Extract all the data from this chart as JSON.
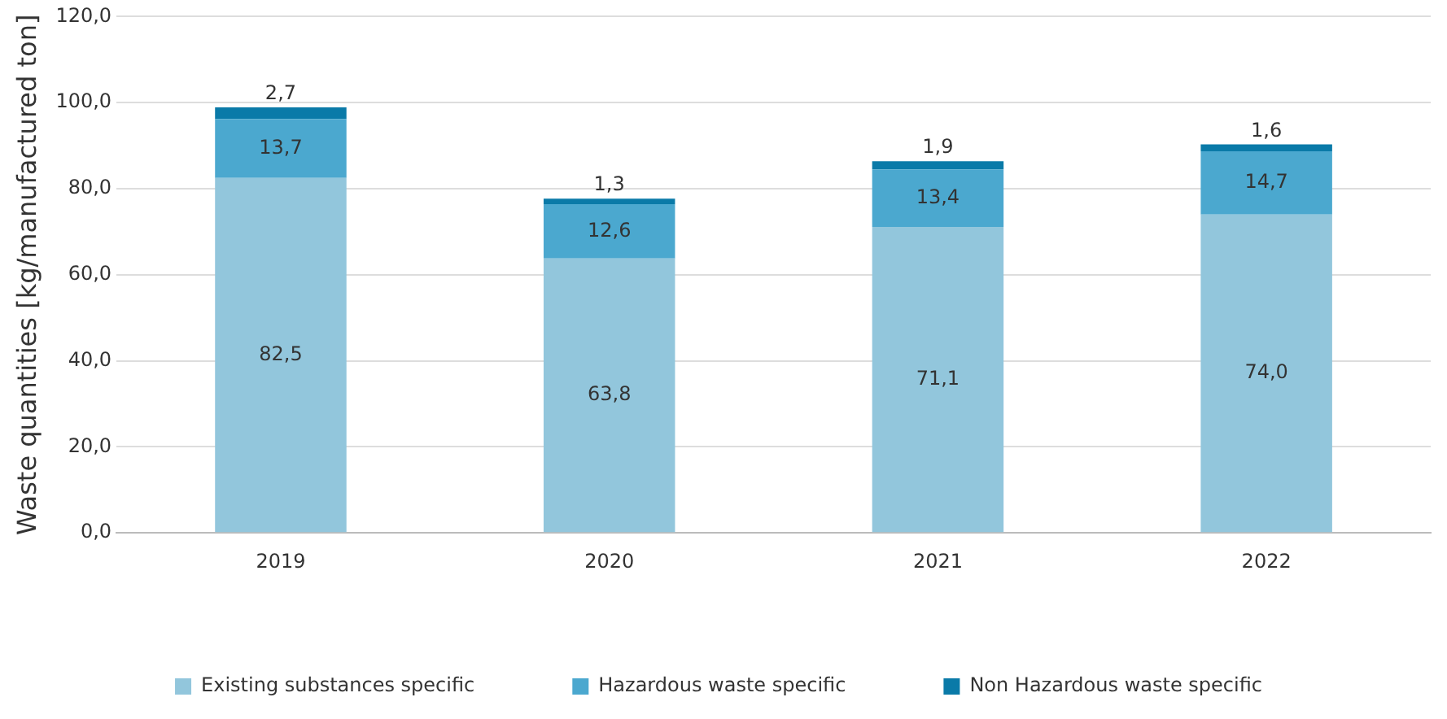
{
  "chart_data": {
    "type": "bar",
    "stacked": true,
    "ylabel": "Waste quantities [kg/manufactured ton]",
    "categories": [
      "2019",
      "2020",
      "2021",
      "2022"
    ],
    "series": [
      {
        "name": "Existing substances specific",
        "color": "#92c6dc",
        "values": [
          82.5,
          63.8,
          71.1,
          74.0
        ],
        "value_labels": [
          "82,5",
          "63,8",
          "71,1",
          "74,0"
        ]
      },
      {
        "name": "Hazardous waste specific",
        "color": "#4ba8cf",
        "values": [
          13.7,
          12.6,
          13.4,
          14.7
        ],
        "value_labels": [
          "13,7",
          "12,6",
          "13,4",
          "14,7"
        ]
      },
      {
        "name": "Non Hazardous waste specific",
        "color": "#0a7aa8",
        "values": [
          2.7,
          1.3,
          1.9,
          1.6
        ],
        "value_labels": [
          "2,7",
          "1,3",
          "1,9",
          "1,6"
        ]
      }
    ],
    "ylim": [
      0,
      120
    ],
    "yticks": [
      {
        "value": 0,
        "label": "0,0"
      },
      {
        "value": 20,
        "label": "20,0"
      },
      {
        "value": 40,
        "label": "40,0"
      },
      {
        "value": 60,
        "label": "60,0"
      },
      {
        "value": 80,
        "label": "80,0"
      },
      {
        "value": 100,
        "label": "100,0"
      },
      {
        "value": 120,
        "label": "120,0"
      }
    ],
    "grid": "y",
    "legend": "bottom"
  }
}
